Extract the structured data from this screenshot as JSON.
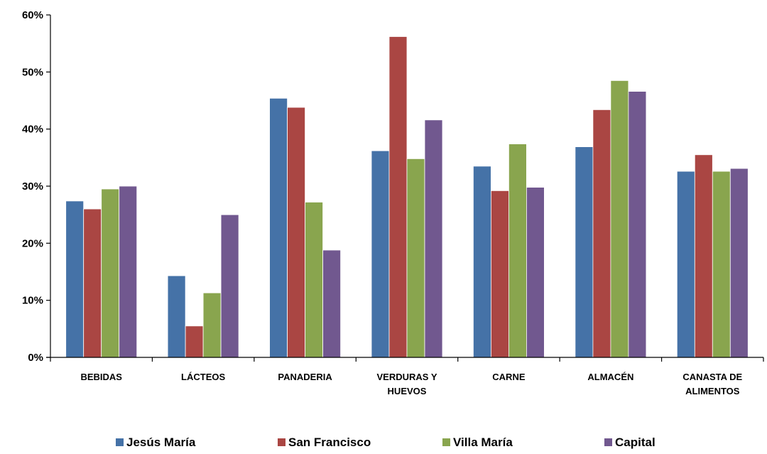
{
  "chart_data": {
    "type": "bar",
    "categories": [
      [
        "BEBIDAS"
      ],
      [
        "LÁCTEOS"
      ],
      [
        "PANADERIA"
      ],
      [
        "VERDURAS Y",
        "HUEVOS"
      ],
      [
        "CARNE"
      ],
      [
        "ALMACÉN"
      ],
      [
        "CANASTA DE",
        "ALIMENTOS"
      ]
    ],
    "series": [
      {
        "name": "Jesús María",
        "color": "#4572A7",
        "values": [
          0.274,
          0.143,
          0.454,
          0.362,
          0.335,
          0.369,
          0.326
        ]
      },
      {
        "name": "San Francisco",
        "color": "#AA4643",
        "values": [
          0.26,
          0.055,
          0.438,
          0.562,
          0.292,
          0.434,
          0.355
        ]
      },
      {
        "name": "Villa María",
        "color": "#89A54E",
        "values": [
          0.295,
          0.113,
          0.272,
          0.348,
          0.374,
          0.485,
          0.326
        ]
      },
      {
        "name": "Capital",
        "color": "#71588F",
        "values": [
          0.3,
          0.25,
          0.188,
          0.416,
          0.298,
          0.466,
          0.331
        ]
      }
    ],
    "ylim": [
      0,
      0.6
    ],
    "yticks": [
      "0%",
      "10%",
      "20%",
      "30%",
      "40%",
      "50%",
      "60%"
    ],
    "grid": false,
    "legend": "bottom",
    "title": "",
    "xlabel": "",
    "ylabel": ""
  }
}
